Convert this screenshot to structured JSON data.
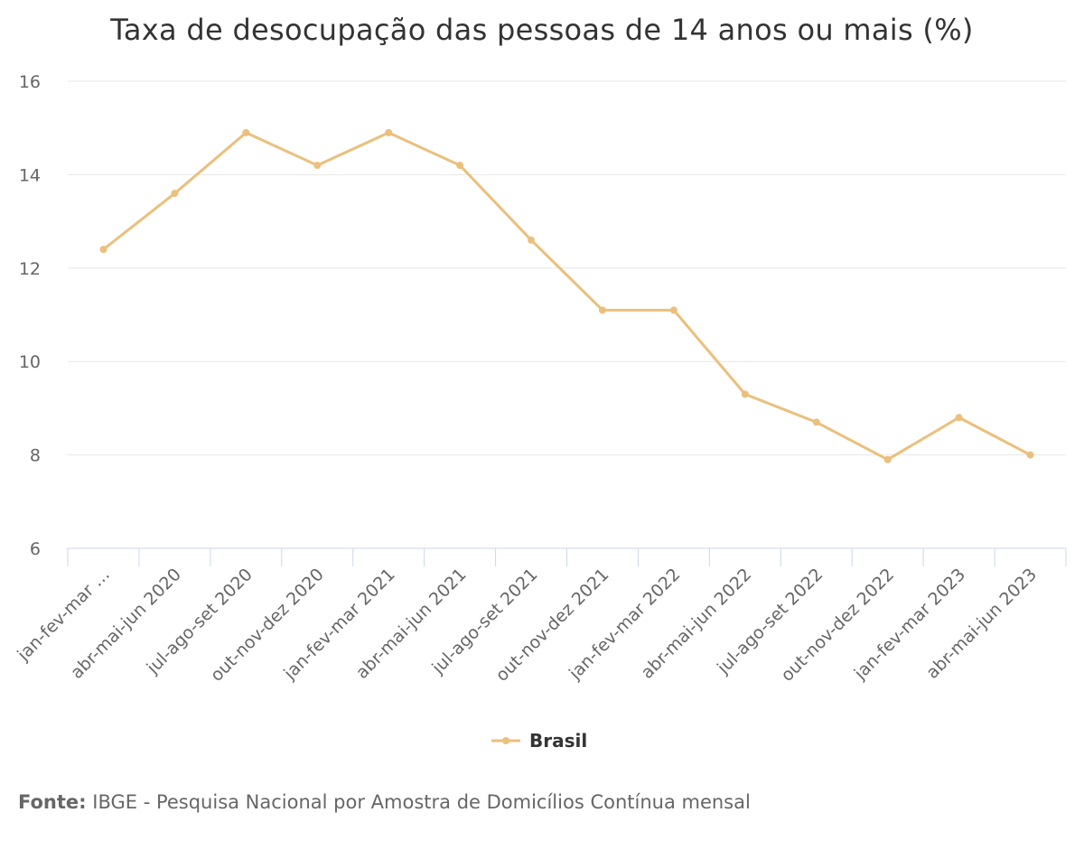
{
  "title": "Taxa de desocupação das pessoas de 14 anos ou mais (%)",
  "source": {
    "label": "Fonte:",
    "text": "IBGE - Pesquisa Nacional por Amostra de Domicílios Contínua mensal"
  },
  "colors": {
    "series": "#ebbf7c",
    "grid": "#e6e6e6",
    "axis": "#ccd6eb",
    "tick_text": "#666666"
  },
  "chart_data": {
    "type": "line",
    "title": "Taxa de desocupação das pessoas de 14 anos ou mais (%)",
    "categories": [
      "jan-fev-mar …",
      "abr-mai-jun 2020",
      "jul-ago-set 2020",
      "out-nov-dez 2020",
      "jan-fev-mar 2021",
      "abr-mai-jun 2021",
      "jul-ago-set 2021",
      "out-nov-dez 2021",
      "jan-fev-mar 2022",
      "abr-mai-jun 2022",
      "jul-ago-set 2022",
      "out-nov-dez 2022",
      "jan-fev-mar 2023",
      "abr-mai-jun 2023"
    ],
    "series": [
      {
        "name": "Brasil",
        "values": [
          12.4,
          13.6,
          14.9,
          14.2,
          14.9,
          14.2,
          12.6,
          11.1,
          11.1,
          9.3,
          8.7,
          7.9,
          8.8,
          8.0
        ]
      }
    ],
    "ylim": [
      6,
      16
    ],
    "yticks": [
      6,
      8,
      10,
      12,
      14,
      16
    ],
    "grid": true,
    "legend": "bottom-center",
    "xlabel": "",
    "ylabel": ""
  }
}
